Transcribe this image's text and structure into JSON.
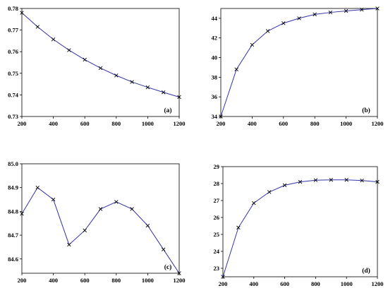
{
  "colors": {
    "line": "#3333aa",
    "marker": "#000000",
    "frame": "#000000"
  },
  "chart_data": [
    {
      "type": "line",
      "panel_label": "(a)",
      "x": [
        200,
        300,
        400,
        500,
        600,
        700,
        800,
        900,
        1000,
        1100,
        1200
      ],
      "y": [
        0.778,
        0.7715,
        0.7657,
        0.7607,
        0.7563,
        0.7524,
        0.749,
        0.746,
        0.7435,
        0.7412,
        0.739
      ],
      "xlim": [
        200,
        1200
      ],
      "ylim": [
        0.73,
        0.78
      ],
      "xticks": [
        200,
        400,
        600,
        800,
        1000,
        1200
      ],
      "xtick_labels": [
        "200",
        "400",
        "600",
        "800",
        "1000",
        "1200"
      ],
      "yticks": [
        0.73,
        0.74,
        0.75,
        0.76,
        0.77,
        0.78
      ],
      "ytick_labels": [
        "0.73",
        "0.74",
        "0.75",
        "0.76",
        "0.77",
        "0.78"
      ],
      "marker": "x",
      "grid": false
    },
    {
      "type": "line",
      "panel_label": "(b)",
      "x": [
        200,
        300,
        400,
        500,
        600,
        700,
        800,
        900,
        1000,
        1100,
        1200
      ],
      "y": [
        34.0,
        38.8,
        41.3,
        42.7,
        43.5,
        44.0,
        44.4,
        44.6,
        44.75,
        44.88,
        45.0
      ],
      "xlim": [
        200,
        1200
      ],
      "ylim": [
        34,
        45
      ],
      "xticks": [
        200,
        400,
        600,
        800,
        1000,
        1200
      ],
      "xtick_labels": [
        "200",
        "400",
        "600",
        "800",
        "1000",
        "1200"
      ],
      "yticks": [
        34,
        36,
        38,
        40,
        42,
        44
      ],
      "ytick_labels": [
        "34",
        "36",
        "38",
        "40",
        "42",
        "44"
      ],
      "marker": "x",
      "grid": false
    },
    {
      "type": "line",
      "panel_label": "(c)",
      "x": [
        200,
        300,
        400,
        500,
        600,
        700,
        800,
        900,
        1000,
        1100,
        1200
      ],
      "y": [
        84.79,
        84.9,
        84.85,
        84.66,
        84.72,
        84.81,
        84.84,
        84.81,
        84.74,
        84.64,
        84.54
      ],
      "xlim": [
        200,
        1200
      ],
      "ylim": [
        84.54,
        85.0
      ],
      "xticks": [
        200,
        400,
        600,
        800,
        1000,
        1200
      ],
      "xtick_labels": [
        "200",
        "400",
        "600",
        "800",
        "1000",
        "1200"
      ],
      "yticks": [
        84.6,
        84.7,
        84.8,
        84.9,
        85.0
      ],
      "ytick_labels": [
        "84.6",
        "84.7",
        "84.8",
        "84.9",
        "85.0"
      ],
      "marker": "x",
      "grid": false
    },
    {
      "type": "line",
      "panel_label": "(d)",
      "x": [
        200,
        300,
        400,
        500,
        600,
        700,
        800,
        900,
        1000,
        1100,
        1200
      ],
      "y": [
        22.5,
        25.4,
        26.85,
        27.5,
        27.9,
        28.1,
        28.2,
        28.22,
        28.22,
        28.18,
        28.1
      ],
      "xlim": [
        200,
        1200
      ],
      "ylim": [
        22.5,
        29
      ],
      "xticks": [
        200,
        400,
        600,
        800,
        1000,
        1200
      ],
      "xtick_labels": [
        "200",
        "400",
        "600",
        "800",
        "1000",
        "1200"
      ],
      "yticks": [
        23,
        24,
        25,
        26,
        27,
        28,
        29
      ],
      "ytick_labels": [
        "23",
        "24",
        "25",
        "26",
        "27",
        "28",
        "29"
      ],
      "marker": "x",
      "grid": false
    }
  ]
}
